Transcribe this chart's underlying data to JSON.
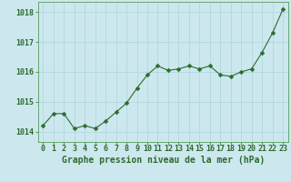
{
  "x": [
    0,
    1,
    2,
    3,
    4,
    5,
    6,
    7,
    8,
    9,
    10,
    11,
    12,
    13,
    14,
    15,
    16,
    17,
    18,
    19,
    20,
    21,
    22,
    23
  ],
  "y": [
    1014.2,
    1014.6,
    1014.6,
    1014.1,
    1014.2,
    1014.1,
    1014.35,
    1014.65,
    1014.95,
    1015.45,
    1015.9,
    1016.2,
    1016.05,
    1016.1,
    1016.2,
    1016.1,
    1016.2,
    1015.9,
    1015.85,
    1016.0,
    1016.1,
    1016.65,
    1017.3,
    1018.1
  ],
  "line_color": "#2d6b2d",
  "marker": "D",
  "marker_size": 2.5,
  "background_color": "#cce8ee",
  "grid_color": "#b0d8e0",
  "ylabel_ticks": [
    1014,
    1015,
    1016,
    1017,
    1018
  ],
  "xlabel_label": "Graphe pression niveau de la mer (hPa)",
  "ylim": [
    1013.65,
    1018.35
  ],
  "xlim": [
    -0.5,
    23.5
  ],
  "label_fontsize": 7,
  "tick_fontsize": 6
}
